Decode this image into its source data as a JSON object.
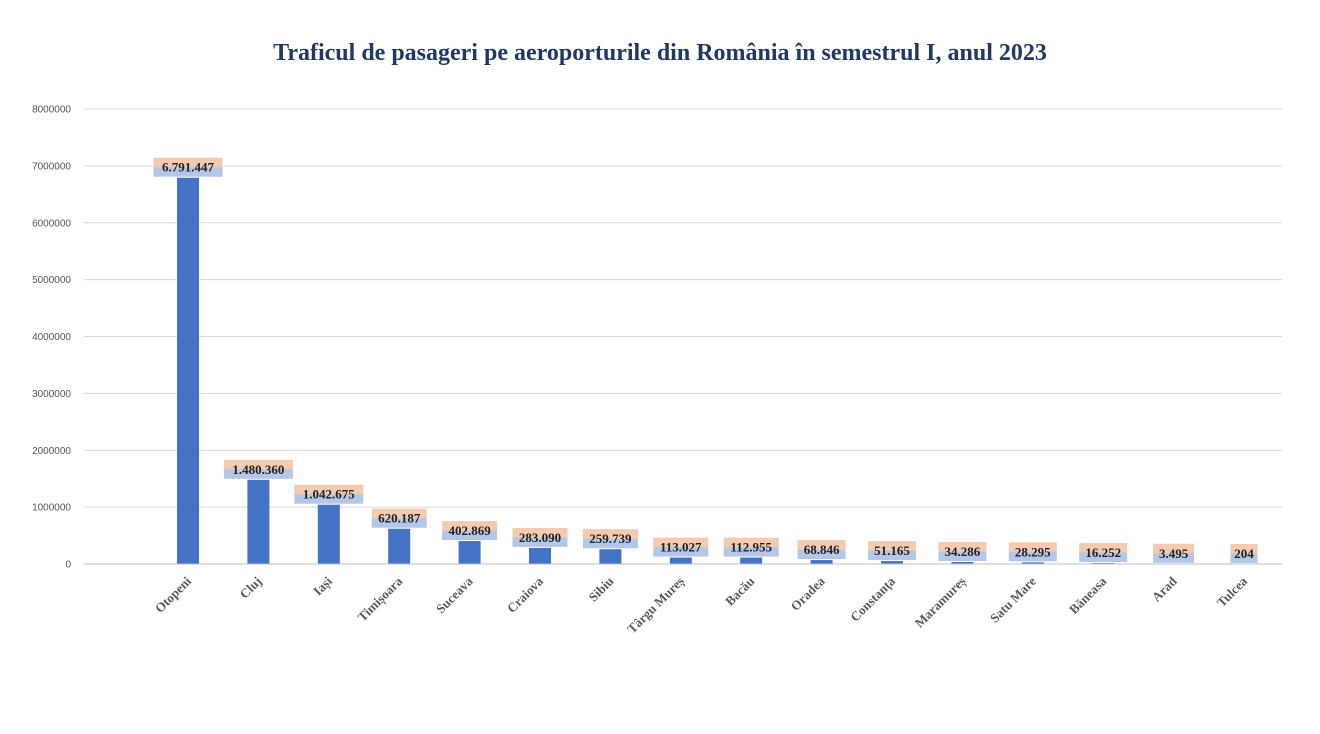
{
  "chart_data": {
    "type": "bar",
    "title": "Traficul de pasageri pe aeroporturile din România în semestrul I, anul 2023",
    "xlabel": "",
    "ylabel": "",
    "ylim": [
      0,
      8000000
    ],
    "yticks": [
      "0",
      "1000000",
      "2000000",
      "3000000",
      "4000000",
      "5000000",
      "6000000",
      "7000000",
      "8000000"
    ],
    "grid": true,
    "legend": "none",
    "categories": [
      "Otopeni",
      "Cluj",
      "Iași",
      "Timișoara",
      "Suceava",
      "Craiova",
      "Sibiu",
      "Târgu Mureș",
      "Bacău",
      "Oradea",
      "Constanța",
      "Maramureș",
      "Satu Mare",
      "Băneasa",
      "Arad",
      "Tulcea"
    ],
    "values": [
      6791447,
      1480360,
      1042675,
      620187,
      402869,
      283090,
      259739,
      113027,
      112955,
      68846,
      51165,
      34286,
      28295,
      16252,
      3495,
      204
    ],
    "data_labels": [
      "6.791.447",
      "1.480.360",
      "1.042.675",
      "620.187",
      "402.869",
      "283.090",
      "259.739",
      "113.027",
      "112.955",
      "68.846",
      "51.165",
      "34.286",
      "28.295",
      "16.252",
      "3.495",
      "204"
    ],
    "colors": {
      "bar": "#4472c4",
      "gridline": "#d9d9d9",
      "axis": "#bfbfbf",
      "label_fill_top": "#f4cbb0",
      "label_fill_bottom": "#b4c7e7"
    }
  }
}
